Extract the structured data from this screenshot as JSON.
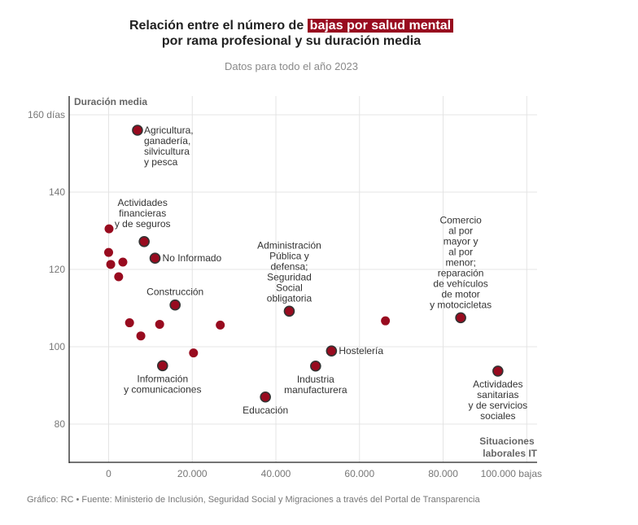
{
  "header": {
    "title_before": "Relación entre el número de ",
    "title_highlight": "bajas por salud mental",
    "title_line2": "por rama profesional y su duración media",
    "subtitle": "Datos para todo el año 2023"
  },
  "footer": "Gráfico: RC • Fuente: Ministerio de Inclusión, Seguridad Social y Migraciones a través del Portal de Transparencia",
  "colors": {
    "dot": "#980b1f",
    "outline": "#333333",
    "highlight": "#980b1f"
  },
  "chart_data": {
    "type": "scatter",
    "title": "Relación entre el número de bajas por salud mental por rama profesional y su duración media",
    "subtitle": "Datos para todo el año 2023",
    "xlabel": "Situaciones laborales IT",
    "ylabel": "Duración media",
    "xlim": [
      -9500,
      102500
    ],
    "ylim": [
      70,
      163
    ],
    "xticks": [
      0,
      20000,
      40000,
      60000,
      80000,
      100000
    ],
    "xtick_labels": [
      "0",
      "20.000",
      "40.000",
      "60.000",
      "80.000",
      "100.000 bajas"
    ],
    "yticks": [
      80,
      100,
      120,
      140,
      160
    ],
    "ytick_labels": [
      "80",
      "100",
      "120",
      "140",
      "160 días"
    ],
    "grid": true,
    "points": [
      {
        "x": 6900,
        "y": 156.0,
        "label": "Agricultura,\nganadería,\nsilvicultura\ny pesca",
        "pos": "right-top"
      },
      {
        "x": 8500,
        "y": 127.2,
        "label": "Actividades\nfinancieras\ny de seguros",
        "pos": "above-left"
      },
      {
        "x": 11100,
        "y": 122.9,
        "label": "No Informado",
        "pos": "right"
      },
      {
        "x": 15900,
        "y": 110.8,
        "label": "Construcción",
        "pos": "above"
      },
      {
        "x": 12900,
        "y": 95.1,
        "label": "Información\ny comunicaciones",
        "pos": "below"
      },
      {
        "x": 43200,
        "y": 109.2,
        "label": "Administración\nPública y\ndefensa;\nSeguridad\nSocial\nobligatoria",
        "pos": "above"
      },
      {
        "x": 37500,
        "y": 87.0,
        "label": "Educación",
        "pos": "below"
      },
      {
        "x": 49500,
        "y": 95.0,
        "label": "Industria\nmanufacturera",
        "pos": "below"
      },
      {
        "x": 53300,
        "y": 98.9,
        "label": "Hostelería",
        "pos": "right"
      },
      {
        "x": 84200,
        "y": 107.5,
        "label": "Comercio\nal por\nmayor y\nal por\nmenor;\nreparación\nde vehículos\nde motor\ny motocicletas",
        "pos": "above"
      },
      {
        "x": 93100,
        "y": 93.7,
        "label": "Actividades\nsanitarias\ny de servicios\nsociales",
        "pos": "below"
      },
      {
        "x": 100,
        "y": 130.5,
        "label": ""
      },
      {
        "x": 0,
        "y": 124.4,
        "label": ""
      },
      {
        "x": 500,
        "y": 121.3,
        "label": ""
      },
      {
        "x": 3400,
        "y": 121.9,
        "label": ""
      },
      {
        "x": 2400,
        "y": 118.1,
        "label": ""
      },
      {
        "x": 5000,
        "y": 106.2,
        "label": ""
      },
      {
        "x": 7700,
        "y": 102.8,
        "label": ""
      },
      {
        "x": 12200,
        "y": 105.8,
        "label": ""
      },
      {
        "x": 26700,
        "y": 105.6,
        "label": ""
      },
      {
        "x": 20300,
        "y": 98.4,
        "label": ""
      },
      {
        "x": 66200,
        "y": 106.7,
        "label": ""
      }
    ]
  }
}
